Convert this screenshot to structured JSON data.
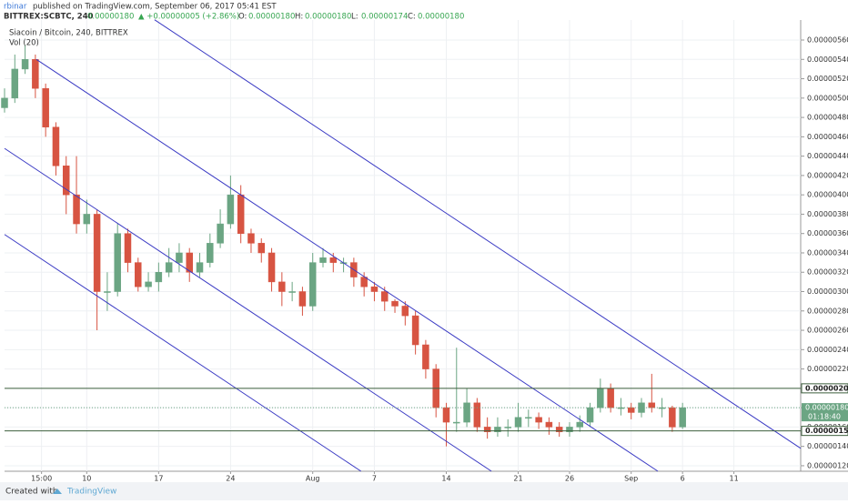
{
  "header": {
    "author": "rbinar",
    "published": "published on TradingView.com, September 06, 2017 05:41 EST",
    "symbol": "BITTREX:SCBTC, 240",
    "price": "0.00000180",
    "change": "▲ +0.00000005 (+2.86%)",
    "ohlc": [
      {
        "key": "O:",
        "value": "0.00000180"
      },
      {
        "key": "H:",
        "value": "0.00000180"
      },
      {
        "key": "L:",
        "value": "0.00000174"
      },
      {
        "key": "C:",
        "value": "0.00000180"
      }
    ]
  },
  "footer": {
    "created": "Created with",
    "brand": "TradingView"
  },
  "chart_data": {
    "type": "candlestick",
    "legend": [
      "Siacoin / Bitcoin, 240, BITTREX",
      "Vol (20)"
    ],
    "up_color": "#6ba583",
    "down_color": "#d75442",
    "grid": true,
    "x": [
      2,
      3,
      4,
      5,
      6,
      7,
      8,
      9,
      10,
      11,
      12,
      13,
      14,
      15,
      16,
      17,
      18,
      19,
      20,
      21,
      22,
      23,
      24,
      25,
      26,
      27,
      28,
      29,
      30,
      31,
      32,
      33,
      34,
      35,
      36,
      37,
      38,
      39,
      40,
      41,
      42,
      43,
      44,
      45,
      46,
      47,
      48,
      49,
      50,
      51,
      52,
      53,
      54,
      55,
      56,
      57,
      58,
      59,
      60,
      61,
      62,
      63,
      64,
      65,
      66,
      67,
      68
    ],
    "open": [
      4.9e-06,
      5e-06,
      5.3e-06,
      5.4e-06,
      5.1e-06,
      4.7e-06,
      4.3e-06,
      4e-06,
      3.7e-06,
      3.8e-06,
      3e-06,
      3e-06,
      3.6e-06,
      3.3e-06,
      3.05e-06,
      3.1e-06,
      3.2e-06,
      3.3e-06,
      3.4e-06,
      3.2e-06,
      3.3e-06,
      3.5e-06,
      3.7e-06,
      4e-06,
      3.6e-06,
      3.5e-06,
      3.4e-06,
      3.1e-06,
      3e-06,
      3e-06,
      2.85e-06,
      3.3e-06,
      3.35e-06,
      3.3e-06,
      3.3e-06,
      3.15e-06,
      3.05e-06,
      3e-06,
      2.9e-06,
      2.85e-06,
      2.75e-06,
      2.45e-06,
      2.2e-06,
      1.8e-06,
      1.65e-06,
      1.65e-06,
      1.85e-06,
      1.6e-06,
      1.55e-06,
      1.6e-06,
      1.6e-06,
      1.7e-06,
      1.7e-06,
      1.65e-06,
      1.6e-06,
      1.55e-06,
      1.6e-06,
      1.65e-06,
      1.8e-06,
      2e-06,
      1.8e-06,
      1.8e-06,
      1.75e-06,
      1.85e-06,
      1.8e-06,
      1.8e-06,
      1.6e-06
    ],
    "high": [
      5.1e-06,
      5.45e-06,
      5.55e-06,
      5.45e-06,
      5.15e-06,
      4.75e-06,
      4.4e-06,
      4.4e-06,
      3.95e-06,
      3.85e-06,
      3.2e-06,
      3.7e-06,
      3.65e-06,
      3.35e-06,
      3.2e-06,
      3.3e-06,
      3.45e-06,
      3.5e-06,
      3.45e-06,
      3.4e-06,
      3.6e-06,
      3.85e-06,
      4.2e-06,
      4.1e-06,
      3.65e-06,
      3.55e-06,
      3.45e-06,
      3.2e-06,
      3.1e-06,
      3.05e-06,
      3.4e-06,
      3.45e-06,
      3.4e-06,
      3.35e-06,
      3.35e-06,
      3.2e-06,
      3.1e-06,
      3.05e-06,
      2.92e-06,
      2.9e-06,
      2.8e-06,
      2.5e-06,
      2.25e-06,
      1.85e-06,
      2.42e-06,
      2e-06,
      1.9e-06,
      1.7e-06,
      1.7e-06,
      1.68e-06,
      1.85e-06,
      1.78e-06,
      1.75e-06,
      1.7e-06,
      1.65e-06,
      1.65e-06,
      1.72e-06,
      1.85e-06,
      2.1e-06,
      2.05e-06,
      1.9e-06,
      1.85e-06,
      1.9e-06,
      2.15e-06,
      1.9e-06,
      1.82e-06,
      1.85e-06
    ],
    "low": [
      4.85e-06,
      4.95e-06,
      5.25e-06,
      5e-06,
      4.6e-06,
      4.2e-06,
      3.8e-06,
      3.6e-06,
      3.6e-06,
      2.6e-06,
      2.8e-06,
      2.95e-06,
      3.2e-06,
      3e-06,
      3e-06,
      3e-06,
      3.15e-06,
      3.2e-06,
      3.1e-06,
      3.15e-06,
      3.25e-06,
      3.45e-06,
      3.65e-06,
      3.5e-06,
      3.4e-06,
      3.3e-06,
      3e-06,
      2.85e-06,
      2.9e-06,
      2.75e-06,
      2.8e-06,
      3.25e-06,
      3.2e-06,
      3.2e-06,
      3.05e-06,
      2.95e-06,
      2.9e-06,
      2.8e-06,
      2.78e-06,
      2.65e-06,
      2.35e-06,
      2.1e-06,
      1.7e-06,
      1.4e-06,
      1.55e-06,
      1.6e-06,
      1.55e-06,
      1.48e-06,
      1.5e-06,
      1.5e-06,
      1.55e-06,
      1.6e-06,
      1.58e-06,
      1.52e-06,
      1.5e-06,
      1.5e-06,
      1.55e-06,
      1.6e-06,
      1.75e-06,
      1.75e-06,
      1.72e-06,
      1.68e-06,
      1.7e-06,
      1.75e-06,
      1.7e-06,
      1.55e-06,
      1.58e-06
    ],
    "close": [
      5e-06,
      5.3e-06,
      5.4e-06,
      5.1e-06,
      4.7e-06,
      4.3e-06,
      4e-06,
      3.7e-06,
      3.8e-06,
      3e-06,
      3e-06,
      3.6e-06,
      3.3e-06,
      3.05e-06,
      3.1e-06,
      3.2e-06,
      3.3e-06,
      3.4e-06,
      3.2e-06,
      3.3e-06,
      3.5e-06,
      3.7e-06,
      4e-06,
      3.6e-06,
      3.5e-06,
      3.4e-06,
      3.1e-06,
      3e-06,
      3e-06,
      2.85e-06,
      3.3e-06,
      3.35e-06,
      3.3e-06,
      3.3e-06,
      3.15e-06,
      3.05e-06,
      3e-06,
      2.9e-06,
      2.85e-06,
      2.75e-06,
      2.45e-06,
      2.2e-06,
      1.8e-06,
      1.65e-06,
      1.65e-06,
      1.85e-06,
      1.6e-06,
      1.55e-06,
      1.6e-06,
      1.6e-06,
      1.7e-06,
      1.7e-06,
      1.65e-06,
      1.6e-06,
      1.55e-06,
      1.6e-06,
      1.65e-06,
      1.8e-06,
      2e-06,
      1.8e-06,
      1.8e-06,
      1.75e-06,
      1.85e-06,
      1.8e-06,
      1.8e-06,
      1.6e-06,
      1.8e-06
    ],
    "trend_lines": {
      "color": "#3b3bc4",
      "lines": [
        {
          "x": [
            16.6,
            79.5
          ],
          "y": [
            5.81e-06,
            1.38e-06
          ]
        },
        {
          "x": [
            5.1,
            65.6
          ],
          "y": [
            5.4e-06,
            1.143e-06
          ]
        },
        {
          "x": [
            2,
            49.4
          ],
          "y": [
            4.48e-06,
            1.143e-06
          ]
        },
        {
          "x": [
            2,
            36.7
          ],
          "y": [
            3.59e-06,
            1.143e-06
          ]
        }
      ]
    },
    "levels": {
      "color": "#3d5f3d",
      "values": [
        {
          "value": 2e-06,
          "label": "0.00000200"
        },
        {
          "value": 1.56e-06,
          "label": "0.00000156"
        }
      ]
    },
    "last_price": {
      "value": 1.8e-06,
      "label": "0.00000180",
      "countdown": "01:18:40"
    },
    "xlim": [
      2,
      79.5
    ],
    "xticks": [
      {
        "value": 5.6,
        "label": "15:00"
      },
      10,
      17,
      24,
      {
        "value": 32,
        "label": "Aug"
      },
      {
        "value": 38,
        "label": "7"
      },
      {
        "value": 45,
        "label": "14"
      },
      {
        "value": 52,
        "label": "21"
      },
      {
        "value": 57,
        "label": "26"
      },
      {
        "value": 63,
        "label": "Sep"
      },
      {
        "value": 68,
        "label": "6"
      },
      {
        "value": 73,
        "label": "11"
      }
    ],
    "ylim": [
      1.143e-06,
      5.807e-06
    ],
    "yticks": [
      {
        "value": 1.2e-06,
        "label": "0.00000120"
      },
      {
        "value": 1.4e-06,
        "label": "0.00000140"
      },
      {
        "value": 1.6e-06,
        "label": "0.00000160"
      },
      {
        "value": 1.8e-06,
        "label": "0.00000180"
      },
      {
        "value": 2e-06,
        "label": "0.00000200"
      },
      {
        "value": 2.2e-06,
        "label": "0.00000220"
      },
      {
        "value": 2.4e-06,
        "label": "0.00000240"
      },
      {
        "value": 2.6e-06,
        "label": "0.00000260"
      },
      {
        "value": 2.8e-06,
        "label": "0.00000280"
      },
      {
        "value": 3e-06,
        "label": "0.00000300"
      },
      {
        "value": 3.2e-06,
        "label": "0.00000320"
      },
      {
        "value": 3.4e-06,
        "label": "0.00000340"
      },
      {
        "value": 3.6e-06,
        "label": "0.00000360"
      },
      {
        "value": 3.8e-06,
        "label": "0.00000380"
      },
      {
        "value": 4e-06,
        "label": "0.00000400"
      },
      {
        "value": 4.2e-06,
        "label": "0.00000420"
      },
      {
        "value": 4.4e-06,
        "label": "0.00000440"
      },
      {
        "value": 4.6e-06,
        "label": "0.00000460"
      },
      {
        "value": 4.8e-06,
        "label": "0.00000480"
      },
      {
        "value": 5e-06,
        "label": "0.00000500"
      },
      {
        "value": 5.2e-06,
        "label": "0.00000520"
      },
      {
        "value": 5.4e-06,
        "label": "0.00000540"
      },
      {
        "value": 5.6e-06,
        "label": "0.00000560"
      }
    ]
  }
}
